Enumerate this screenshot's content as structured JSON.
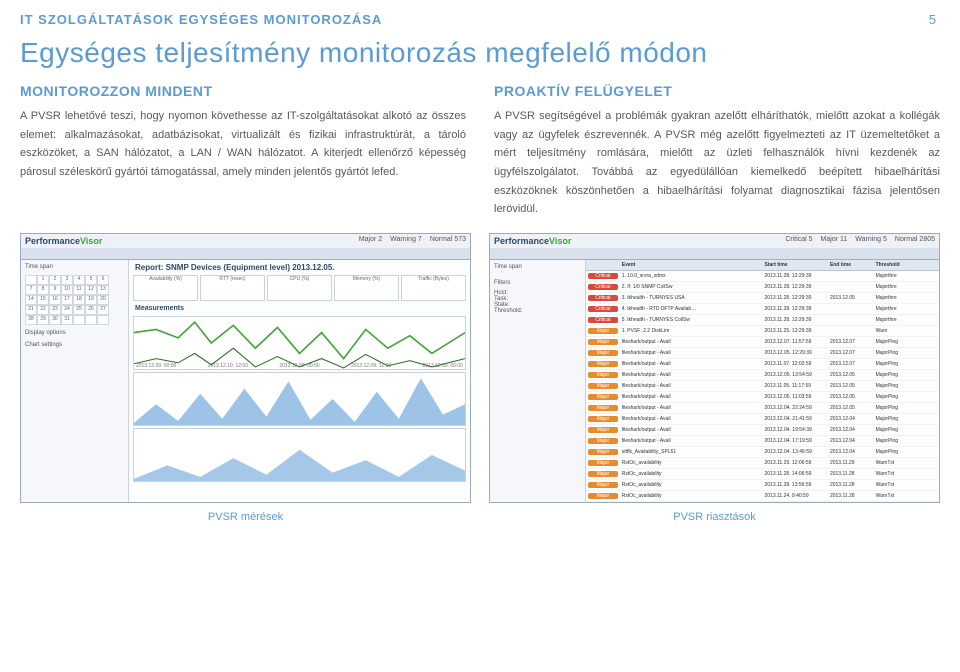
{
  "header": "IT SZOLGÁLTATÁSOK EGYSÉGES MONITOROZÁSA",
  "page_number": "5",
  "title": "Egységes teljesítmény monitorozás megfelelő módon",
  "brand_color": "#5b9bd5",
  "text_color": "#595959",
  "left": {
    "heading": "MONITOROZZON MINDENT",
    "body": "A PVSR lehetővé teszi, hogy nyomon követhesse az IT-szolgáltatásokat alkotó az összes elemet: alkalmazásokat, adatbázisokat, virtualizált és fizikai infrastruktúrát, a tároló eszközöket, a SAN hálózatot, a LAN / WAN hálózatot. A kiterjedt ellenőrző képesség párosul széleskörű gyártói támogatással, amely minden jelentős gyártót lefed."
  },
  "right": {
    "heading": "PROAKTÍV FELÜGYELET",
    "body": "A PVSR segítségével a problémák gyakran azelőtt elháríthatók, mielőtt azokat a kollégák vagy az ügyfelek észrevennék. A PVSR még azelőtt figyelmezteti az IT üzemeltetőket a mért teljesítmény romlására, mielőtt az üzleti felhasználók hívni kezdenék az ügyfélszolgálatot. Továbbá az egyedülállóan kiemelkedő beépített hibaelhárítási eszközöknek köszönhetően a hibaelhárítási folyamat diagnosztikai fázisa jelentősen lerövidül."
  },
  "screenshots": {
    "left": {
      "caption": "PVSR mérések",
      "logo": "PerformanceVisor",
      "report_title": "Report: SNMP Devices (Equipment level) 2013.12.05.",
      "columns": [
        "Availability (%)",
        "RTT (msec)",
        "CPU (%)",
        "Memory (%)",
        "Traffic (Bytes)"
      ],
      "measurements_label": "Measurements",
      "chart1_color": "#3fa535",
      "chart2_color": "#5b9bd5",
      "chart3_color": "#5b9bd5",
      "x_ticks": [
        "2013.12.09. 00:00",
        "2013.12.10. 12:00",
        "2013.12.09. 00:00",
        "2013.12.09. 12:00",
        "2013.12.09. 00:00"
      ],
      "calendar_days": [
        [
          "",
          "1",
          "2",
          "3",
          "4",
          "5",
          "6"
        ],
        [
          "7",
          "8",
          "9",
          "10",
          "11",
          "12",
          "13"
        ],
        [
          "14",
          "15",
          "16",
          "17",
          "18",
          "19",
          "20"
        ],
        [
          "21",
          "22",
          "23",
          "24",
          "25",
          "26",
          "27"
        ],
        [
          "28",
          "29",
          "30",
          "31",
          "",
          "",
          ""
        ]
      ]
    },
    "right": {
      "caption": "PVSR riasztások",
      "logo": "PerformanceVisor",
      "table_headers": [
        "",
        "Event",
        "Start time",
        "End time",
        "Threshold",
        "State"
      ],
      "severity_colors": {
        "Critical": "#d84b3a",
        "Major": "#e78b2f",
        "Minor": "#e8c23a",
        "Warn": "#5b9bd5",
        "Normal": "#4aa84a"
      },
      "rows": [
        {
          "sev": "Critical",
          "name": "1. 10.0_srvra_sdmx",
          "start": "2013.11.28. 12:29:39",
          "end": "",
          "th": "Majorthre"
        },
        {
          "sev": "Critical",
          "name": "2. If: 1/0  SNMP CollSw",
          "start": "2013.11.28. 12:29:39",
          "end": "",
          "th": "Majorthre"
        },
        {
          "sev": "Critical",
          "name": "3. tkhealth - TURNYES USA",
          "start": "2013.11.28. 12:29:39",
          "end": "2013.12.05",
          "th": "Majorthre"
        },
        {
          "sev": "Critical",
          "name": "4. tkhealth - RTD DFTP Availab…",
          "start": "2013.11.28. 12:29:39",
          "end": "",
          "th": "Majorthre"
        },
        {
          "sev": "Critical",
          "name": "5. tkhealth - TURNYES CollSw",
          "start": "2013.11.28. 12:29:39",
          "end": "",
          "th": "Majorthre"
        },
        {
          "sev": "Major",
          "name": "1. PVSF: 2.2  DiskLim",
          "start": "2013.11.25. 13:29:39",
          "end": "",
          "th": "Warn"
        },
        {
          "sev": "Major",
          "name": "fileshark/output - Avail",
          "start": "2013.12.07. 11:57:59",
          "end": "2013.12.07",
          "th": "MajorPing"
        },
        {
          "sev": "Major",
          "name": "fileshark/output - Avail",
          "start": "2013.12.05. 12:29:39",
          "end": "2013.12.07",
          "th": "MajorPing"
        },
        {
          "sev": "Major",
          "name": "fileshark/output - Avail",
          "start": "2013.11.07. 12:02:59",
          "end": "2013.12.07",
          "th": "MajorPing"
        },
        {
          "sev": "Major",
          "name": "fileshark/output - Avail",
          "start": "2013.12.05. 13:54:59",
          "end": "2013.12.05",
          "th": "MajorPing"
        },
        {
          "sev": "Major",
          "name": "fileshark/output - Avail",
          "start": "2013.11.05. 11:17:59",
          "end": "2013.12.05",
          "th": "MajorPing"
        },
        {
          "sev": "Major",
          "name": "fileshark/output - Avail",
          "start": "2013.12.05. 11:03:59",
          "end": "2013.12.05",
          "th": "MajorPing"
        },
        {
          "sev": "Major",
          "name": "fileshark/output - Avail",
          "start": "2013.12.04. 22:24:59",
          "end": "2013.12.05",
          "th": "MajorPing"
        },
        {
          "sev": "Major",
          "name": "fileshark/output - Avail",
          "start": "2013.12.04. 21:41:59",
          "end": "2013.12.04",
          "th": "MajorPing"
        },
        {
          "sev": "Major",
          "name": "fileshark/output - Avail",
          "start": "2013.12.04. 19:54:39",
          "end": "2013.12.04",
          "th": "MajorPing"
        },
        {
          "sev": "Major",
          "name": "fileshark/output - Avail",
          "start": "2013.12.04. 17:19:59",
          "end": "2013.12.04",
          "th": "MajorPing"
        },
        {
          "sev": "Major",
          "name": "sttflk_Availability_SPL61",
          "start": "2013.12.04. 13:46:59",
          "end": "2013.12.04",
          "th": "MajorPing"
        },
        {
          "sev": "Major",
          "name": "RstOc_availability",
          "start": "2013.11.29. 12:06:59",
          "end": "2013.11.29",
          "th": "WarnTxt"
        },
        {
          "sev": "Major",
          "name": "RstOc_availability",
          "start": "2013.11.28. 14:06:59",
          "end": "2013.11.28",
          "th": "WarnTxt"
        },
        {
          "sev": "Major",
          "name": "RstOc_availability",
          "start": "2013.11.28. 13:56:59",
          "end": "2013.11.28",
          "th": "WarnTxt"
        },
        {
          "sev": "Major",
          "name": "RstOc_availability",
          "start": "2013.11.24. 9:40:59",
          "end": "2013.11.28",
          "th": "WarnTxt"
        }
      ]
    }
  }
}
